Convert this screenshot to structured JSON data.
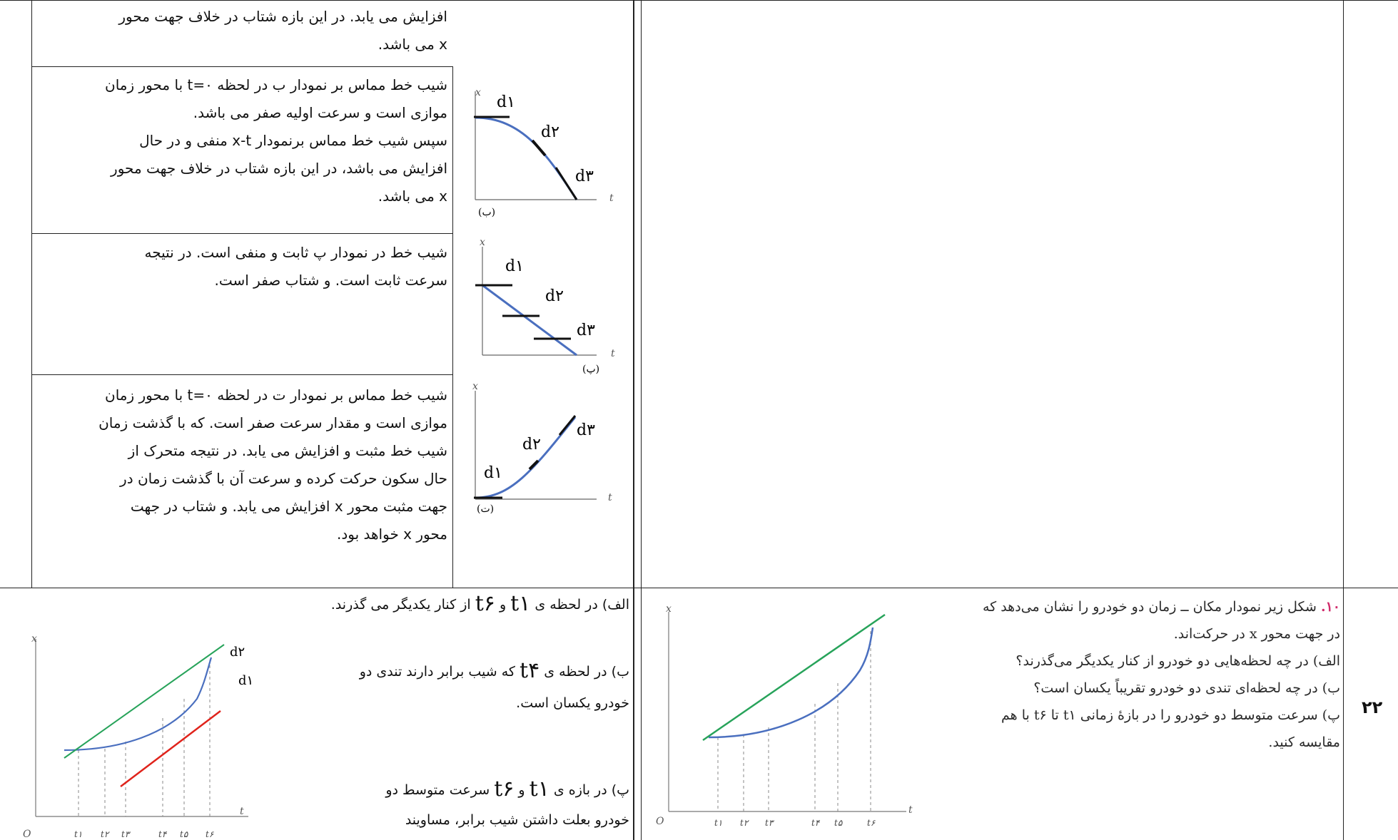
{
  "row_number": "۲۲",
  "top": {
    "cells": [
      {
        "lines": [
          "افزایش می یابد. در این بازه شتاب در خلاف جهت محور",
          "x می باشد."
        ]
      },
      {
        "lines": [
          "شیب خط مماس بر نمودار ب در لحظه  t=۰ با محور زمان",
          "موازی است و سرعت اولیه صفر می باشد.",
          "سپس شیب خط مماس برنمودار x-t منفی و در حال",
          "افزایش می باشد، در این بازه شتاب در خلاف جهت محور",
          "x می باشد."
        ]
      },
      {
        "lines": [
          "شیب خط در نمودار پ ثابت و منفی است. در نتیجه",
          "سرعت ثابت است. و شتاب صفر است."
        ]
      },
      {
        "lines": [
          "شیب خط مماس بر نمودار ت در لحظه  t=۰ با محور زمان",
          "موازی است و مقدار سرعت صفر است. که با گذشت زمان",
          "شیب خط مثبت و افزایش می یابد. در نتیجه متحرک از",
          "حال سکون حرکت کرده و سرعت آن با گذشت زمان در",
          "جهت مثبت محور x افزایش می یابد. و شتاب در جهت",
          "محور x خواهد بود."
        ]
      }
    ],
    "graphs": [
      {
        "caption": "(ب)",
        "x": "x",
        "t": "t",
        "d1": "d۱",
        "d2": "d۲",
        "d3": "d۳"
      },
      {
        "caption": "(پ)",
        "x": "x",
        "t": "t",
        "d1": "d۱",
        "d2": "d۲",
        "d3": "d۳"
      },
      {
        "caption": "(ت)",
        "x": "x",
        "t": "t",
        "d1": "d۱",
        "d2": "d۲",
        "d3": "d۳"
      }
    ]
  },
  "question": {
    "number": "۱۰.",
    "lines": [
      "شکل زیر نمودار مکان ــ زمان دو خودرو را نشان می‌دهد که",
      "در جهت محور x در حرکت‌اند.",
      "الف) در چه لحظه‌هایی دو خودرو از کنار یکدیگر می‌گذرند؟",
      "ب) در چه لحظه‌ای تندی دو خودرو تقریباً یکسان است؟",
      "پ) سرعت متوسط دو خودرو را در بازهٔ زمانی t۱ تا t۶ با هم",
      "مقایسه کنید."
    ],
    "graph": {
      "x": "x",
      "t": "t",
      "o": "O",
      "ticks": [
        "t۱",
        "t۲",
        "t۳",
        "t۴",
        "t۵",
        "t۶"
      ]
    }
  },
  "answer": {
    "alef_pre": "الف) در لحظه ی",
    "alef_t1": "t۱",
    "alef_and": "و",
    "alef_t6": "t۶",
    "alef_post": "از کنار یکدیگر می گذرند.",
    "be_pre": "ب) در لحظه ی",
    "be_t4": "t۴",
    "be_post": "که شیب برابر دارند تندی دو",
    "be_line2": "خودرو یکسان است.",
    "pe_pre": "پ) در بازه ی",
    "pe_t1": "t۱",
    "pe_and": "و",
    "pe_t6": "t۶",
    "pe_post": "سرعت متوسط دو",
    "pe_line2": "خودرو بعلت داشتن شیب برابر، مساویند",
    "graph": {
      "x": "x",
      "t": "t",
      "o": "O",
      "d1": "d۱",
      "d2": "d۲",
      "ticks": [
        "t۱",
        "t۲",
        "t۳",
        "t۴",
        "t۵",
        "t۶"
      ]
    }
  },
  "colors": {
    "curve": "#4a6fbf",
    "line_green": "#27a35a",
    "line_red": "#e0231b"
  }
}
